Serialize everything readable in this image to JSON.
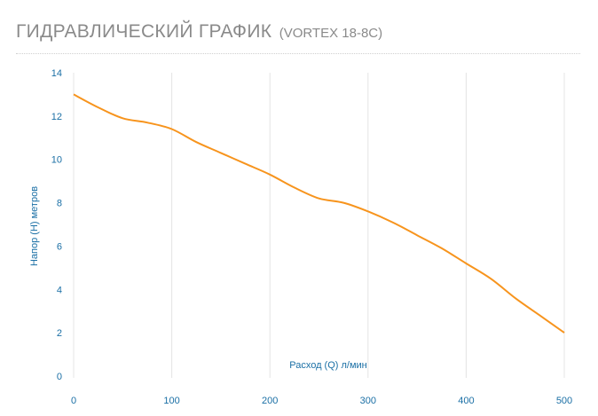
{
  "header": {
    "title": "ГИДРАВЛИЧЕСКИЙ ГРАФИК",
    "model": "(VORTEX 18-8С)"
  },
  "chart_data": {
    "type": "line",
    "xlabel": "Расход (Q) л/мин",
    "ylabel": "Напор (Н) метров",
    "xlim": [
      0,
      500
    ],
    "ylim": [
      0,
      14
    ],
    "x_ticks": [
      0,
      100,
      200,
      300,
      400,
      500
    ],
    "y_ticks": [
      0,
      2,
      4,
      6,
      8,
      10,
      12,
      14
    ],
    "grid": "vertical",
    "series": [
      {
        "color": "#f7941d",
        "x": [
          0,
          25,
          50,
          75,
          100,
          125,
          150,
          175,
          200,
          225,
          250,
          275,
          300,
          325,
          350,
          375,
          400,
          425,
          450,
          475,
          500
        ],
        "y": [
          13.0,
          12.4,
          11.9,
          11.7,
          11.4,
          10.8,
          10.3,
          9.8,
          9.3,
          8.7,
          8.2,
          8.0,
          7.6,
          7.1,
          6.5,
          5.9,
          5.2,
          4.5,
          3.6,
          2.8,
          2.0
        ]
      }
    ]
  }
}
